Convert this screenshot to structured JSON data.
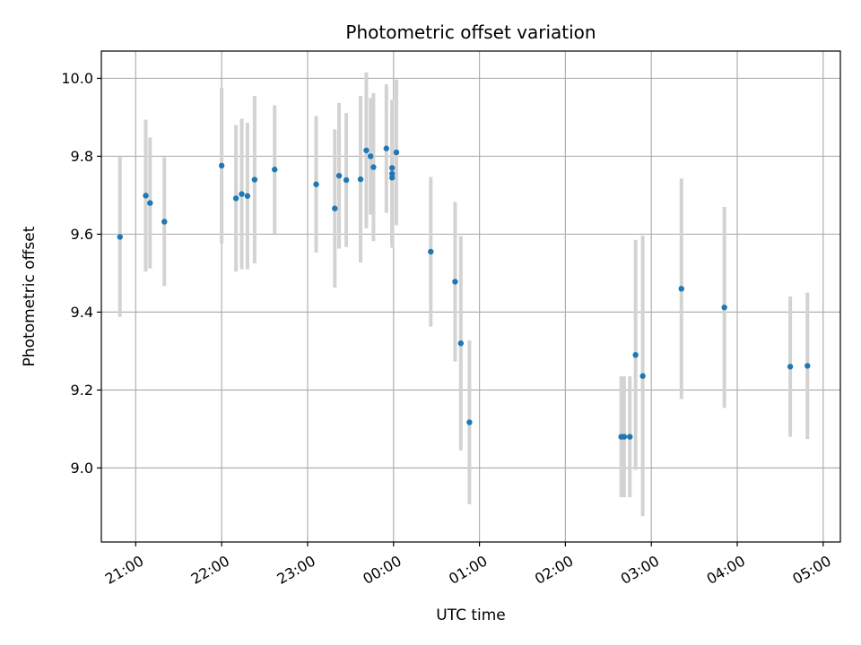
{
  "chart_data": {
    "type": "scatter",
    "title": "Photometric offset variation",
    "xlabel": "UTC time",
    "ylabel": "Photometric offset",
    "grid": true,
    "legend": "none",
    "xlim": [
      "20:36",
      "05:12"
    ],
    "ylim": [
      8.81,
      10.07
    ],
    "x_ticks": [
      "21:00",
      "22:00",
      "23:00",
      "00:00",
      "01:00",
      "02:00",
      "03:00",
      "04:00",
      "05:00"
    ],
    "y_ticks": [
      "9.0",
      "9.2",
      "9.4",
      "9.6",
      "9.8",
      "10.0"
    ],
    "colors": {
      "point": "#1f77b4",
      "errorbar": "#d3d3d3",
      "grid": "#b0b0b0"
    },
    "points": [
      {
        "time": "20:49",
        "y": 9.593,
        "err": 0.205
      },
      {
        "time": "21:07",
        "y": 9.699,
        "err": 0.195
      },
      {
        "time": "21:10",
        "y": 9.68,
        "err": 0.168
      },
      {
        "time": "21:20",
        "y": 9.632,
        "err": 0.165
      },
      {
        "time": "22:00",
        "y": 9.776,
        "err": 0.2
      },
      {
        "time": "22:10",
        "y": 9.692,
        "err": 0.188
      },
      {
        "time": "22:14",
        "y": 9.703,
        "err": 0.193
      },
      {
        "time": "22:18",
        "y": 9.698,
        "err": 0.188
      },
      {
        "time": "22:23",
        "y": 9.74,
        "err": 0.215
      },
      {
        "time": "22:37",
        "y": 9.766,
        "err": 0.165
      },
      {
        "time": "23:06",
        "y": 9.728,
        "err": 0.175
      },
      {
        "time": "23:19",
        "y": 9.666,
        "err": 0.203
      },
      {
        "time": "23:22",
        "y": 9.75,
        "err": 0.187
      },
      {
        "time": "23:27",
        "y": 9.739,
        "err": 0.172
      },
      {
        "time": "23:37",
        "y": 9.741,
        "err": 0.214
      },
      {
        "time": "23:41",
        "y": 9.815,
        "err": 0.2
      },
      {
        "time": "23:44",
        "y": 9.8,
        "err": 0.15
      },
      {
        "time": "23:46",
        "y": 9.772,
        "err": 0.19
      },
      {
        "time": "23:55",
        "y": 9.82,
        "err": 0.165
      },
      {
        "time": "23:59",
        "y": 9.745,
        "err": 0.165
      },
      {
        "time": "23:59",
        "y": 9.77,
        "err": 0.175
      },
      {
        "time": "23:59",
        "y": 9.755,
        "err": 0.19
      },
      {
        "time": "00:02",
        "y": 9.81,
        "err": 0.187
      },
      {
        "time": "00:26",
        "y": 9.555,
        "err": 0.192
      },
      {
        "time": "00:43",
        "y": 9.478,
        "err": 0.205
      },
      {
        "time": "00:47",
        "y": 9.32,
        "err": 0.275
      },
      {
        "time": "00:53",
        "y": 9.117,
        "err": 0.21
      },
      {
        "time": "02:39",
        "y": 9.08,
        "err": 0.155
      },
      {
        "time": "02:41",
        "y": 9.08,
        "err": 0.155
      },
      {
        "time": "02:45",
        "y": 9.08,
        "err": 0.155
      },
      {
        "time": "02:49",
        "y": 9.29,
        "err": 0.295
      },
      {
        "time": "02:54",
        "y": 9.236,
        "err": 0.36
      },
      {
        "time": "03:21",
        "y": 9.46,
        "err": 0.283
      },
      {
        "time": "03:51",
        "y": 9.412,
        "err": 0.258
      },
      {
        "time": "04:37",
        "y": 9.26,
        "err": 0.18
      },
      {
        "time": "04:49",
        "y": 9.262,
        "err": 0.188
      }
    ]
  }
}
